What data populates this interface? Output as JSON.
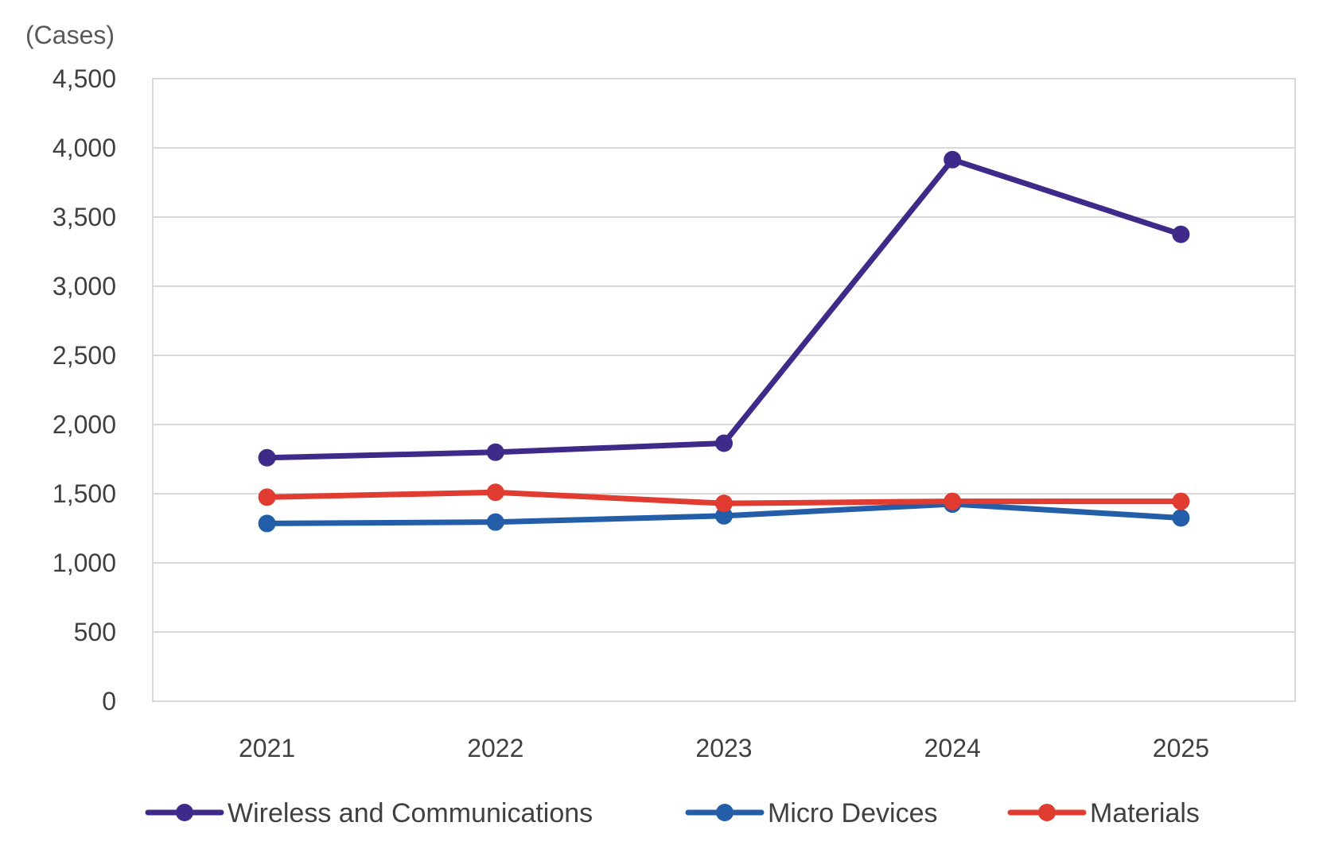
{
  "chart_data": {
    "type": "line",
    "unit_label": "(Cases)",
    "categories": [
      "2021",
      "2022",
      "2023",
      "2024",
      "2025"
    ],
    "y_ticks": [
      "0",
      "500",
      "1,000",
      "1,500",
      "2,000",
      "2,500",
      "3,000",
      "3,500",
      "4,000",
      "4,500"
    ],
    "ylim": [
      0,
      4500
    ],
    "grid": true,
    "legend_position": "bottom",
    "series": [
      {
        "name": "Wireless and Communications",
        "color": "#3f2a8a",
        "values": [
          1760,
          1800,
          1865,
          3915,
          3375
        ]
      },
      {
        "name": "Micro Devices",
        "color": "#255ea8",
        "values": [
          1285,
          1295,
          1340,
          1425,
          1325
        ]
      },
      {
        "name": "Materials",
        "color": "#e03c31",
        "values": [
          1475,
          1510,
          1430,
          1445,
          1445
        ]
      }
    ]
  }
}
